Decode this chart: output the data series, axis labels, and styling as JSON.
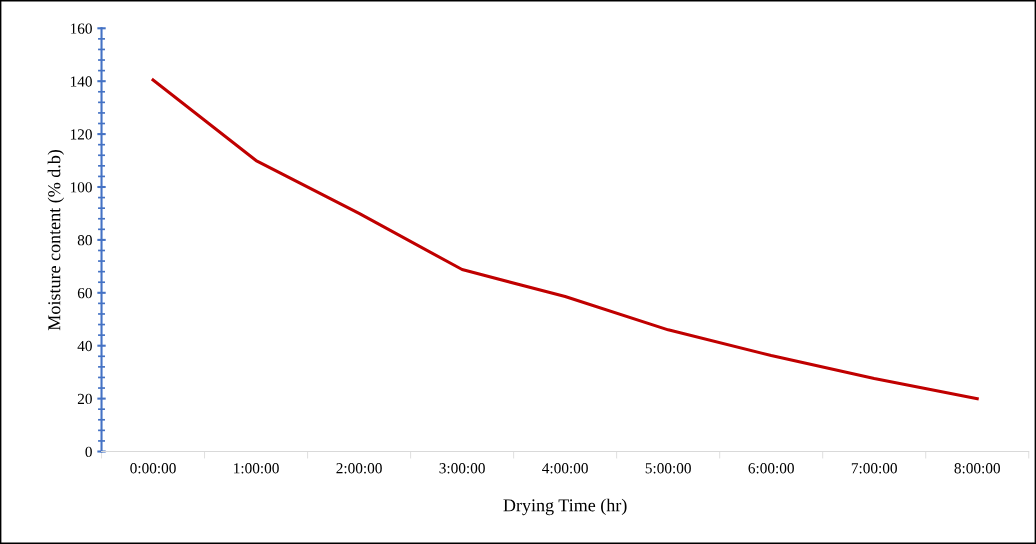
{
  "chart_data": {
    "type": "line",
    "xlabel": "Drying Time (hr)",
    "ylabel": "Moisture content (% d.b)",
    "categories": [
      "0:00:00",
      "1:00:00",
      "2:00:00",
      "3:00:00",
      "4:00:00",
      "5:00:00",
      "6:00:00",
      "7:00:00",
      "8:00:00"
    ],
    "series": [
      {
        "color": "#c00000",
        "values": [
          140.5,
          110,
          90,
          68.8,
          58.6,
          46,
          36.3,
          27.6,
          20
        ]
      }
    ],
    "ylim": [
      0,
      160
    ],
    "yticks": [
      0,
      20,
      40,
      60,
      80,
      100,
      120,
      140,
      160
    ],
    "grid": false,
    "legend": false,
    "marker": "none",
    "line_style": "solid"
  }
}
